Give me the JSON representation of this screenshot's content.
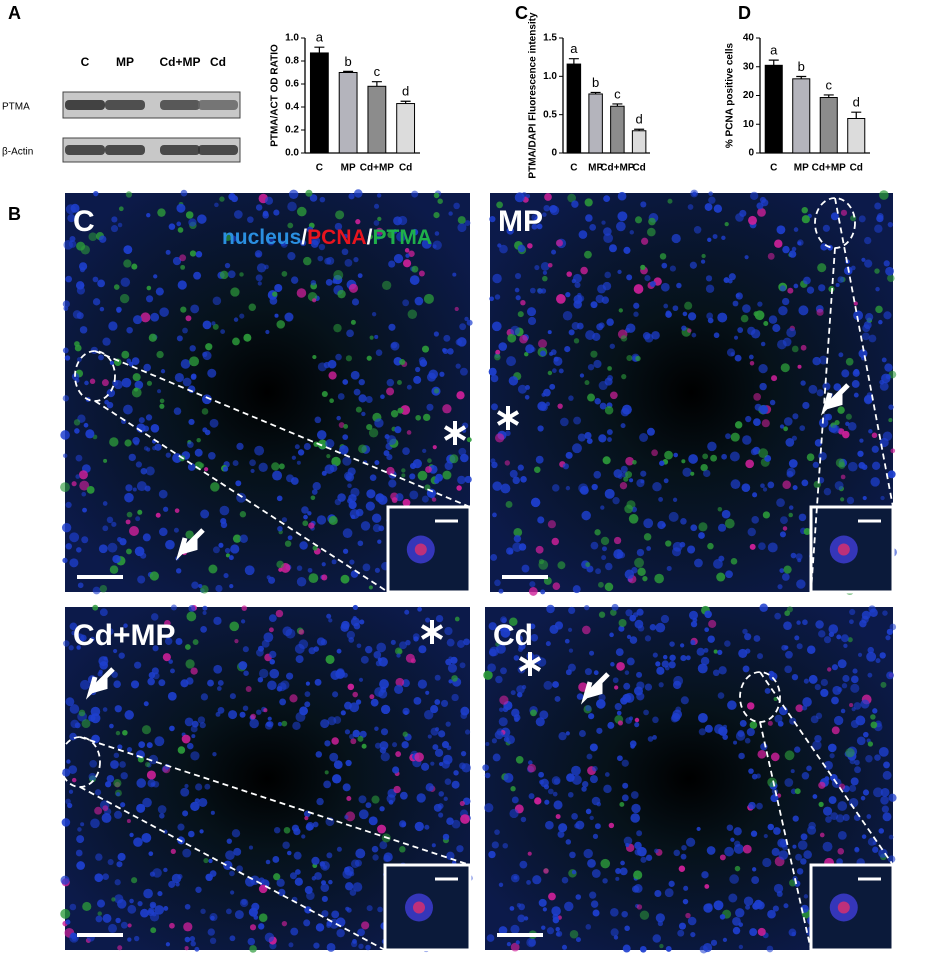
{
  "panel_labels": [
    "A",
    "B",
    "C",
    "D"
  ],
  "blot": {
    "lanes": [
      "C",
      "MP",
      "Cd+MP",
      "Cd"
    ],
    "rows": [
      "PTMA",
      "β-Actin"
    ]
  },
  "micrographs": {
    "legend": [
      {
        "text": "nucleus",
        "color": "#2a8fe0"
      },
      {
        "text": "PCNA",
        "color": "#e8141e"
      },
      {
        "text": "PTMA",
        "color": "#1fb04a"
      }
    ],
    "separator": "/",
    "panels": [
      "C",
      "MP",
      "Cd+MP",
      "Cd"
    ]
  },
  "chart_data": [
    {
      "type": "bar",
      "y_label": "PTMA/ACT OD RATIO",
      "categories": [
        "C",
        "MP",
        "Cd+MP",
        "Cd"
      ],
      "values": [
        0.87,
        0.7,
        0.58,
        0.43
      ],
      "errors": [
        0.05,
        0.01,
        0.04,
        0.02
      ],
      "letters": [
        "a",
        "b",
        "c",
        "d"
      ],
      "colors": [
        "#000000",
        "#b4b4bc",
        "#8c8c8c",
        "#dcdcdc"
      ],
      "ylim": [
        0,
        1.0
      ],
      "yticks": [
        {
          "value": 0,
          "label": "0.0"
        },
        0.2,
        0.4,
        0.6,
        0.8,
        {
          "value": 1.0,
          "label": "1.0"
        }
      ]
    },
    {
      "type": "bar",
      "y_label": "PTMA/DAPI Fluorescence intensity",
      "categories": [
        "C",
        "MP",
        "Cd+MP",
        "Cd"
      ],
      "values": [
        1.16,
        0.77,
        0.61,
        0.29
      ],
      "errors": [
        0.07,
        0.02,
        0.03,
        0.02
      ],
      "letters": [
        "a",
        "b",
        "c",
        "d"
      ],
      "colors": [
        "#000000",
        "#b4b4bc",
        "#8c8c8c",
        "#dcdcdc"
      ],
      "ylim": [
        0,
        1.5
      ],
      "yticks": [
        0,
        0.5,
        {
          "value": 1.0,
          "label": "1.0"
        },
        1.5
      ]
    },
    {
      "type": "bar",
      "y_label": "% PCNA positive cells",
      "categories": [
        "C",
        "MP",
        "Cd+MP",
        "Cd"
      ],
      "values": [
        30.5,
        25.8,
        19.3,
        12
      ],
      "errors": [
        1.8,
        0.8,
        0.9,
        2.2
      ],
      "letters": [
        "a",
        "b",
        "c",
        "d"
      ],
      "colors": [
        "#000000",
        "#b4b4bc",
        "#8c8c8c",
        "#dcdcdc"
      ],
      "ylim": [
        0,
        40
      ],
      "yticks": [
        0,
        10,
        20,
        30,
        40
      ]
    }
  ]
}
